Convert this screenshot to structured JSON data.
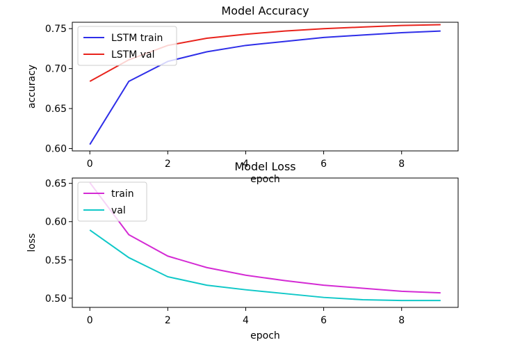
{
  "chart_data": [
    {
      "type": "line",
      "title": "Model Accuracy",
      "xlabel": "epoch",
      "ylabel": "accuracy",
      "x": [
        0,
        1,
        2,
        3,
        4,
        5,
        6,
        7,
        8,
        9
      ],
      "xlim": [
        -0.45,
        9.45
      ],
      "ylim": [
        0.597,
        0.758
      ],
      "xticks": [
        0,
        2,
        4,
        6,
        8
      ],
      "yticks": [
        0.6,
        0.65,
        0.7,
        0.75
      ],
      "yticklabels": [
        "0.60",
        "0.65",
        "0.70",
        "0.75"
      ],
      "grid": false,
      "legend": "upper-left",
      "series": [
        {
          "name": "LSTM train",
          "color": "#2e2ee8",
          "values": [
            0.605,
            0.684,
            0.709,
            0.721,
            0.729,
            0.734,
            0.739,
            0.742,
            0.745,
            0.747
          ]
        },
        {
          "name": "LSTM val",
          "color": "#e8231c",
          "values": [
            0.684,
            0.711,
            0.729,
            0.738,
            0.743,
            0.747,
            0.75,
            0.752,
            0.754,
            0.755
          ]
        }
      ]
    },
    {
      "type": "line",
      "title": "Model Loss",
      "xlabel": "epoch",
      "ylabel": "loss",
      "x": [
        0,
        1,
        2,
        3,
        4,
        5,
        6,
        7,
        8,
        9
      ],
      "xlim": [
        -0.45,
        9.45
      ],
      "ylim": [
        0.488,
        0.657
      ],
      "xticks": [
        0,
        2,
        4,
        6,
        8
      ],
      "yticks": [
        0.5,
        0.55,
        0.6,
        0.65
      ],
      "yticklabels": [
        "0.50",
        "0.55",
        "0.60",
        "0.65"
      ],
      "grid": false,
      "legend": "upper-left",
      "series": [
        {
          "name": "train",
          "color": "#d42bd4",
          "values": [
            0.651,
            0.583,
            0.555,
            0.54,
            0.53,
            0.523,
            0.517,
            0.513,
            0.509,
            0.507
          ]
        },
        {
          "name": "val",
          "color": "#10c8c8",
          "values": [
            0.589,
            0.553,
            0.528,
            0.517,
            0.511,
            0.506,
            0.501,
            0.498,
            0.497,
            0.497
          ]
        }
      ]
    }
  ]
}
